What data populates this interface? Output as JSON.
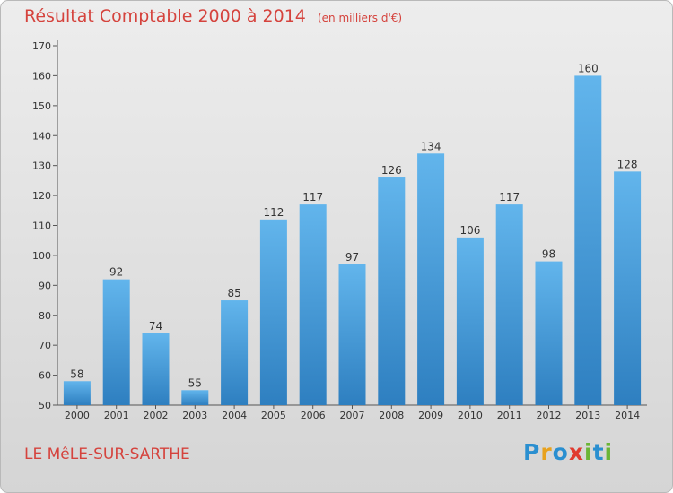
{
  "title": {
    "main": "Résultat Comptable 2000 à 2014",
    "unit": "(en milliers d'€)"
  },
  "location": "LE MêLE-SUR-SARTHE",
  "logo": {
    "letters": [
      "P",
      "r",
      "o",
      "x",
      "i",
      "t",
      "i"
    ],
    "colors": [
      "#2a8fd0",
      "#e8a21e",
      "#2a8fd0",
      "#e03a2f",
      "#6bb536",
      "#2a8fd0",
      "#6bb536"
    ]
  },
  "colors": {
    "bar_light": "#62b5ec",
    "bar_dark": "#2e7fc0",
    "text": "#d5433d"
  },
  "chart_data": {
    "type": "bar",
    "categories": [
      "2000",
      "2001",
      "2002",
      "2003",
      "2004",
      "2005",
      "2006",
      "2007",
      "2008",
      "2009",
      "2010",
      "2011",
      "2012",
      "2013",
      "2014"
    ],
    "values": [
      58,
      92,
      74,
      55,
      85,
      112,
      117,
      97,
      126,
      134,
      106,
      117,
      98,
      160,
      128
    ],
    "yticks": [
      50,
      60,
      70,
      80,
      90,
      100,
      110,
      120,
      130,
      140,
      150,
      160,
      170
    ],
    "ylim": [
      50,
      170
    ],
    "grid": false,
    "data_labels": true
  }
}
